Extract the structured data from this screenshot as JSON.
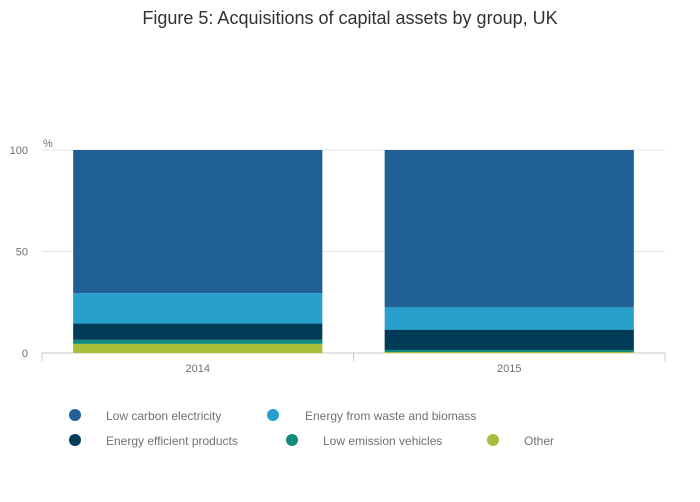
{
  "chart_data": {
    "type": "bar",
    "stacked": true,
    "title": "Figure 5: Acquisitions of capital assets by group, UK",
    "ylabel": "%",
    "xlabel": "",
    "categories": [
      "2014",
      "2015"
    ],
    "ylim": [
      0,
      100
    ],
    "yticks": [
      "0",
      "50",
      "100"
    ],
    "grid": true,
    "legend_position": "bottom",
    "series": [
      {
        "name": "Other",
        "color": "#a8bd3a",
        "values": [
          4.5,
          0.5
        ]
      },
      {
        "name": "Low emission vehicles",
        "color": "#118c7b",
        "values": [
          2,
          1
        ]
      },
      {
        "name": "Energy efficient products",
        "color": "#003c57",
        "values": [
          8,
          10
        ]
      },
      {
        "name": "Energy from waste and biomass",
        "color": "#27a0cc",
        "values": [
          15,
          11
        ]
      },
      {
        "name": "Low carbon electricity",
        "color": "#206095",
        "values": [
          70.5,
          77.5
        ]
      }
    ],
    "legend_order": [
      "Low carbon electricity",
      "Energy from waste and biomass",
      "Energy efficient products",
      "Low emission vehicles",
      "Other"
    ]
  }
}
